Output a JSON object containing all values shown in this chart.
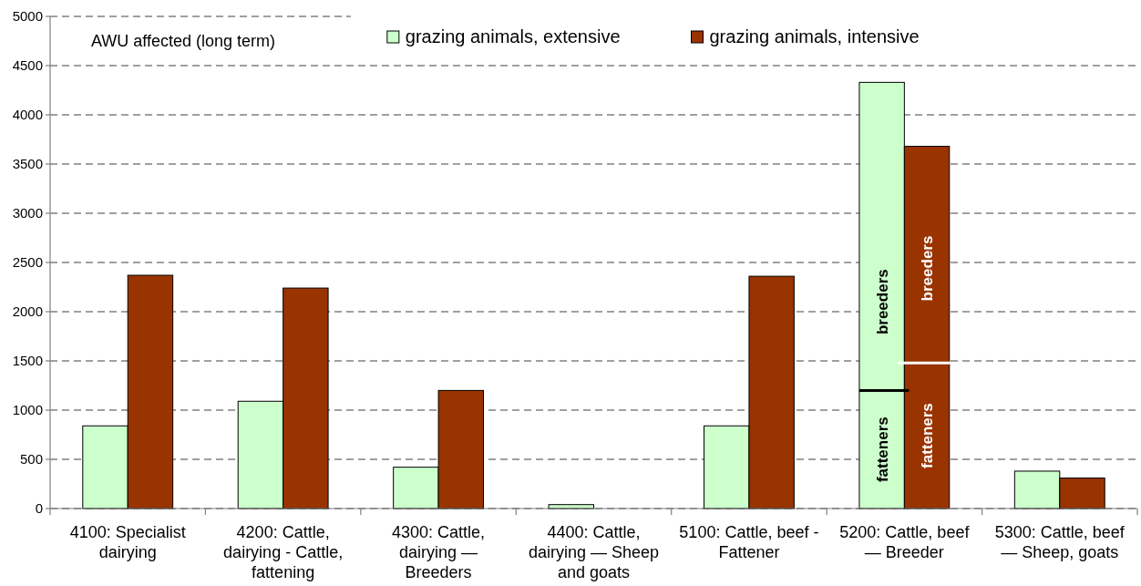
{
  "chart_data": {
    "type": "bar",
    "ylabel": "AWU affected (long term)",
    "categories": [
      "4100: Specialist dairying",
      "4200: Cattle, dairying - Cattle, fattening",
      "4300: Cattle, dairying — Breeders",
      "4400: Cattle, dairying — Sheep and goats",
      "5100: Cattle, beef - Fattener",
      "5200: Cattle, beef — Breeder",
      "5300: Cattle, beef — Sheep, goats"
    ],
    "series": [
      {
        "name": "grazing animals, extensive",
        "color": "#ccffcc",
        "values": [
          840,
          1090,
          420,
          40,
          840,
          4330,
          380
        ]
      },
      {
        "name": "grazing animals, intensive",
        "color": "#993300",
        "values": [
          2370,
          2240,
          1200,
          null,
          2360,
          3680,
          310
        ]
      }
    ],
    "ylim": [
      0,
      5000
    ],
    "yticks": [
      0,
      500,
      1000,
      1500,
      2000,
      2500,
      3000,
      3500,
      4000,
      4500,
      5000
    ],
    "grid": "y",
    "legend": "top",
    "annotations": [
      {
        "text": "fatteners",
        "x": "5200: Cattle, beef — Breeder",
        "y": 600
      },
      {
        "text": "breeders",
        "x": "5200: Cattle, beef — Breeder",
        "y": 2100
      },
      {
        "text": "breeders",
        "x": "5200: Cattle, beef — Breeder",
        "y": 2440
      },
      {
        "text": "fatteners",
        "x": "5200: Cattle, beef — Breeder",
        "y": 740
      }
    ]
  }
}
